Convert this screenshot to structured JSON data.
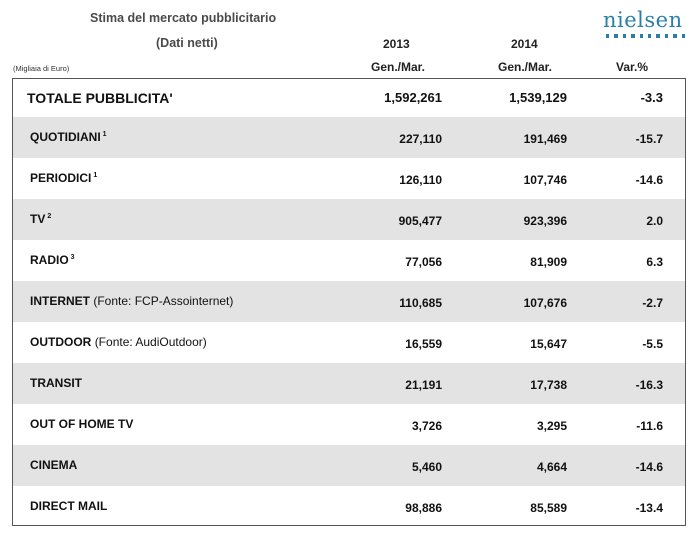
{
  "header": {
    "title": "Stima del mercato pubblicitario",
    "subtitle": "(Dati netti)",
    "unit": "(Migliaia di Euro)",
    "logo_text": "nielsen",
    "brand_color": "#2a7fa8",
    "col_2013_year": "2013",
    "col_2013_period": "Gen./Mar.",
    "col_2014_year": "2014",
    "col_2014_period": "Gen./Mar.",
    "col_var": "Var.%"
  },
  "rows": [
    {
      "label": "TOTALE PUBBLICITA'",
      "source": "",
      "sup": "",
      "v2013": "1,592,261",
      "v2014": "1,539,129",
      "var": "-3.3"
    },
    {
      "label": "QUOTIDIANI",
      "source": "",
      "sup": "1",
      "v2013": "227,110",
      "v2014": "191,469",
      "var": "-15.7"
    },
    {
      "label": "PERIODICI",
      "source": "",
      "sup": "1",
      "v2013": "126,110",
      "v2014": "107,746",
      "var": "-14.6"
    },
    {
      "label": "TV",
      "source": "",
      "sup": "2",
      "v2013": "905,477",
      "v2014": "923,396",
      "var": "2.0"
    },
    {
      "label": "RADIO",
      "source": "",
      "sup": "3",
      "v2013": "77,056",
      "v2014": "81,909",
      "var": "6.3"
    },
    {
      "label": "INTERNET",
      "source": "(Fonte: FCP-Assointernet)",
      "sup": "",
      "v2013": "110,685",
      "v2014": "107,676",
      "var": "-2.7"
    },
    {
      "label": "OUTDOOR",
      "source": "(Fonte: AudiOutdoor)",
      "sup": "",
      "v2013": "16,559",
      "v2014": "15,647",
      "var": "-5.5"
    },
    {
      "label": "TRANSIT",
      "source": "",
      "sup": "",
      "v2013": "21,191",
      "v2014": "17,738",
      "var": "-16.3"
    },
    {
      "label": "OUT OF HOME TV",
      "source": "",
      "sup": "",
      "v2013": "3,726",
      "v2014": "3,295",
      "var": "-11.6"
    },
    {
      "label": "CINEMA",
      "source": "",
      "sup": "",
      "v2013": "5,460",
      "v2014": "4,664",
      "var": "-14.6"
    },
    {
      "label": "DIRECT MAIL",
      "source": "",
      "sup": "",
      "v2013": "98,886",
      "v2014": "85,589",
      "var": "-13.4"
    }
  ]
}
